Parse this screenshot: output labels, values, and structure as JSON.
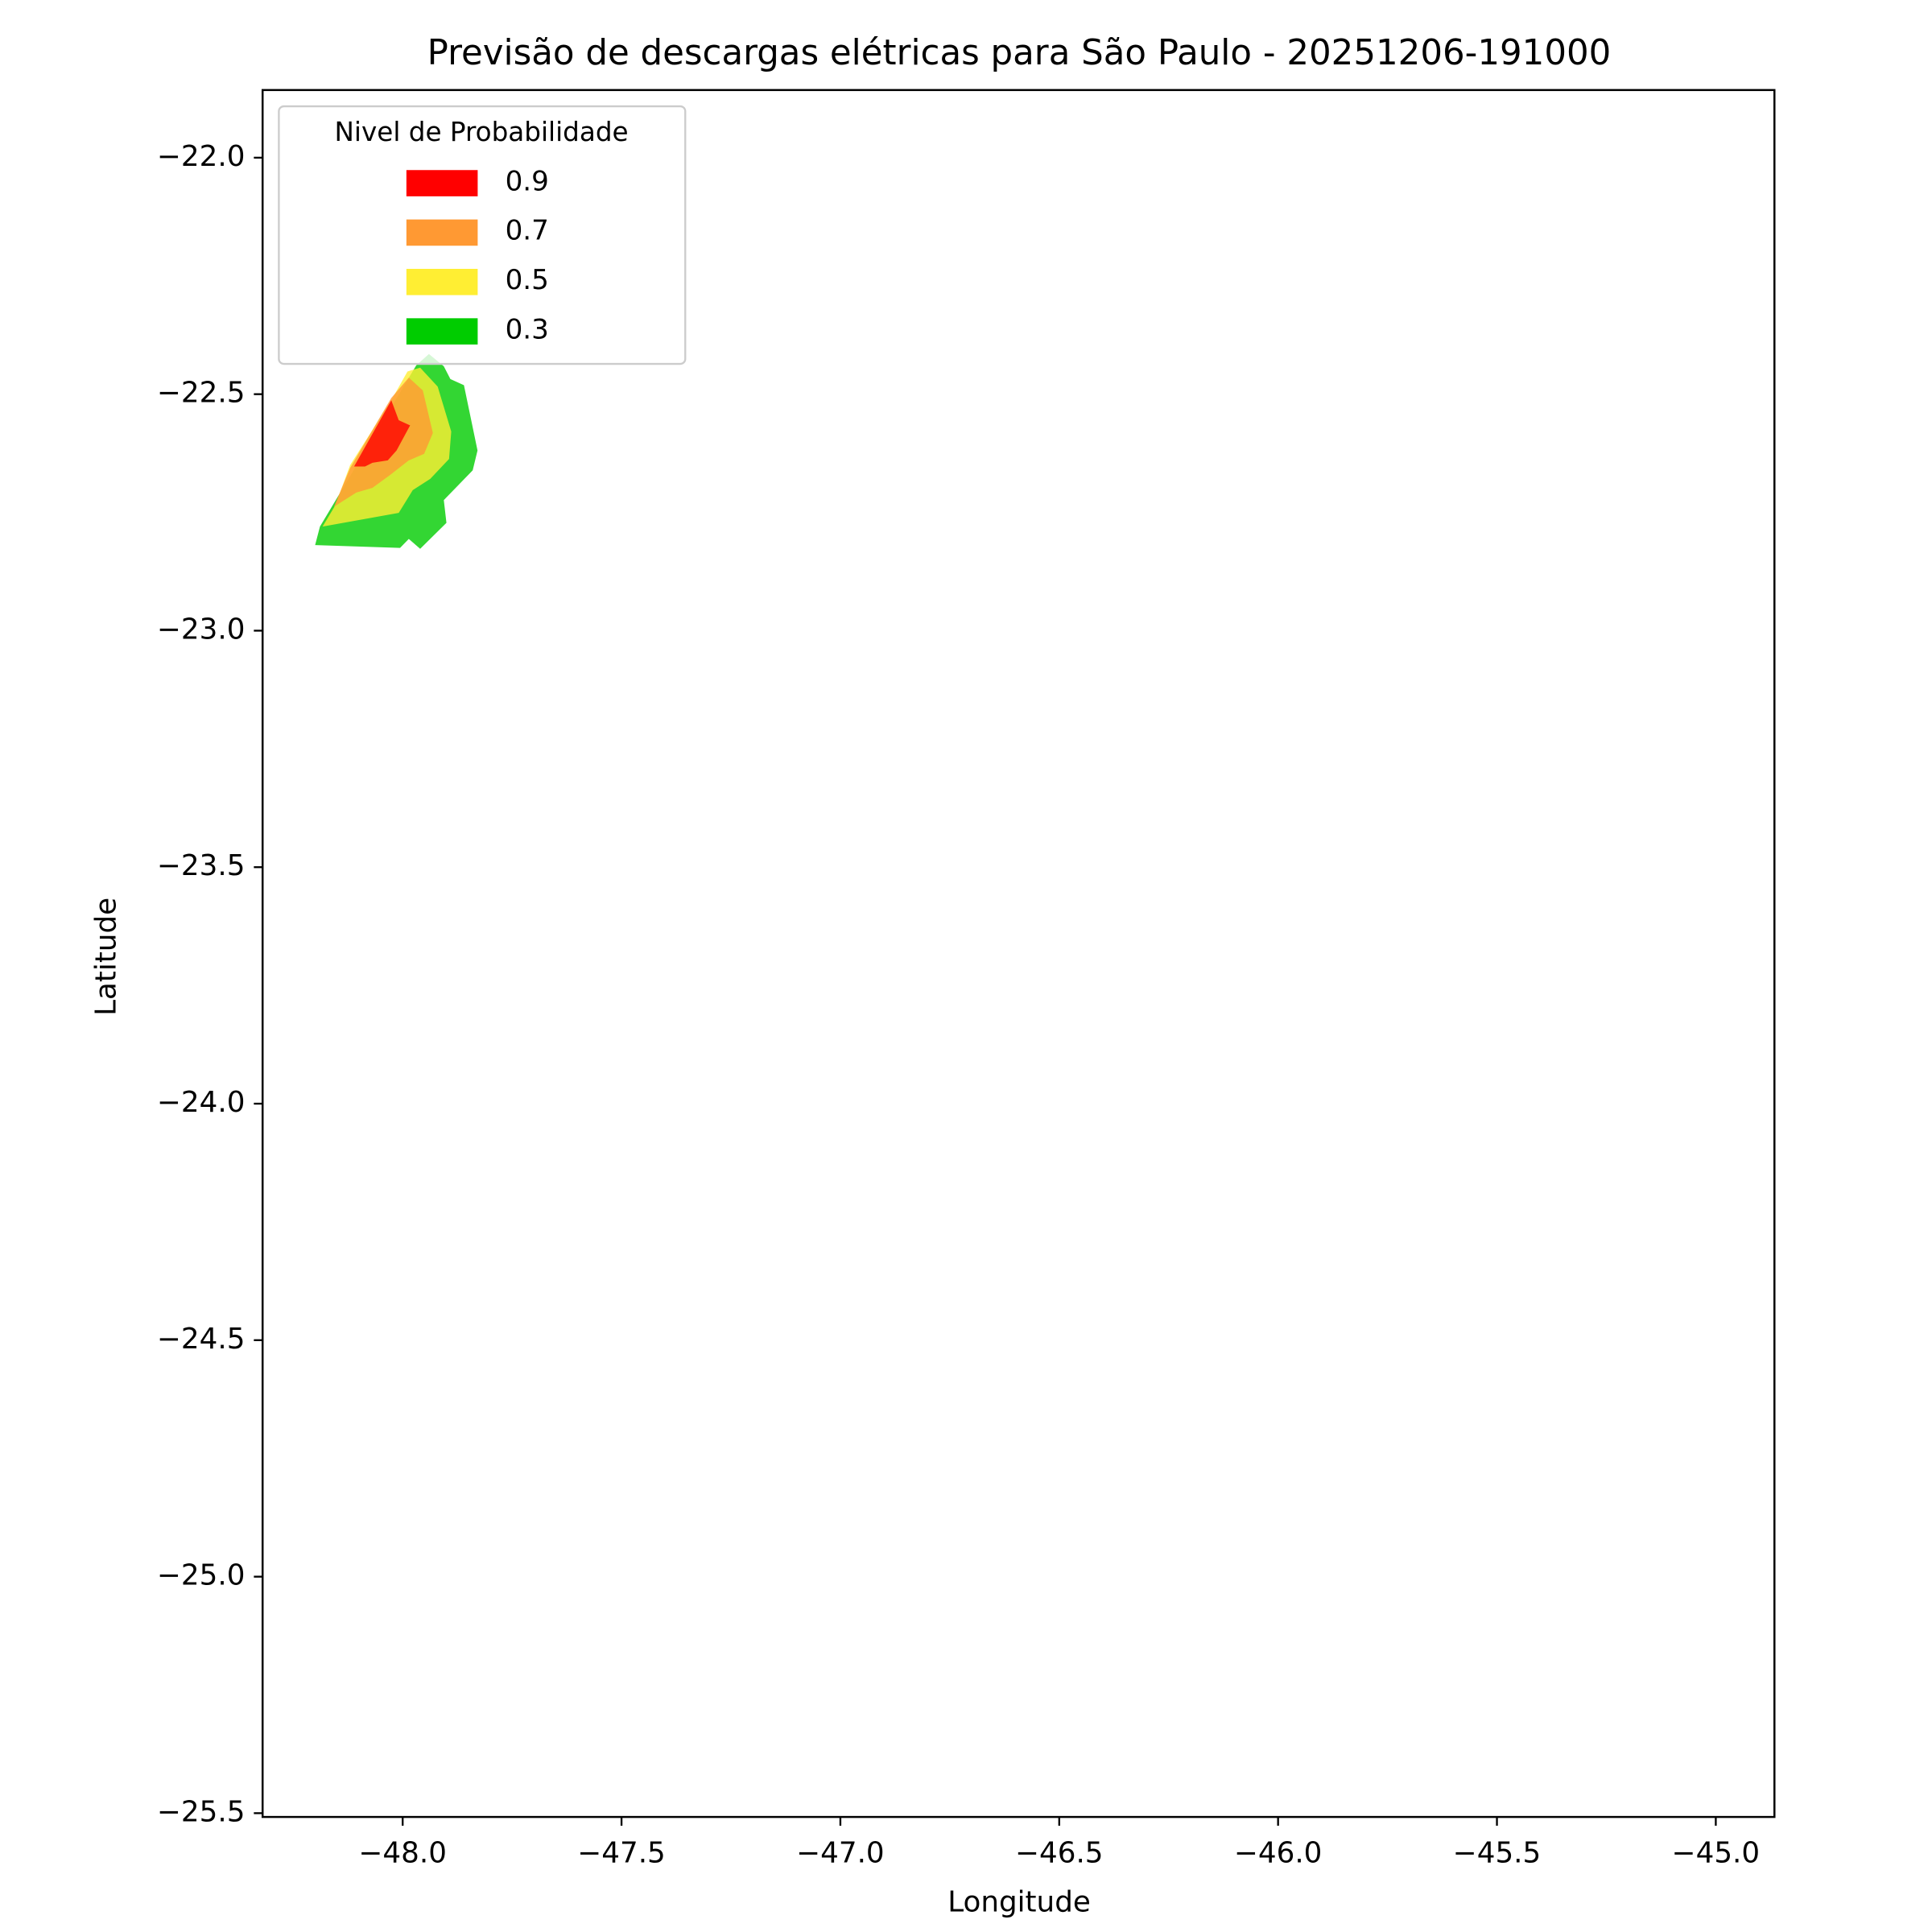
{
  "chart_data": {
    "type": "filled-contour",
    "title": "Previsão de descargas elétricas para São Paulo - 20251206-191000",
    "x_label": "Longitude",
    "y_label": "Latitude",
    "legend_title": "Nivel de Probabilidade",
    "legend_position": "upper left",
    "alpha": 0.8,
    "xlim": [
      -48.32,
      -44.866
    ],
    "ylim": [
      -25.508,
      -21.857
    ],
    "xticks": [
      {
        "value": -48.0,
        "label": "−48.0"
      },
      {
        "value": -47.5,
        "label": "−47.5"
      },
      {
        "value": -47.0,
        "label": "−47.0"
      },
      {
        "value": -46.5,
        "label": "−46.5"
      },
      {
        "value": -46.0,
        "label": "−46.0"
      },
      {
        "value": -45.5,
        "label": "−45.5"
      },
      {
        "value": -45.0,
        "label": "−45.0"
      }
    ],
    "yticks": [
      {
        "value": -22.0,
        "label": "−22.0"
      },
      {
        "value": -22.5,
        "label": "−22.5"
      },
      {
        "value": -23.0,
        "label": "−23.0"
      },
      {
        "value": -23.5,
        "label": "−23.5"
      },
      {
        "value": -24.0,
        "label": "−24.0"
      },
      {
        "value": -24.5,
        "label": "−24.5"
      },
      {
        "value": -25.0,
        "label": "−25.0"
      },
      {
        "value": -25.5,
        "label": "−25.5"
      }
    ],
    "series": [
      {
        "name": "0.9",
        "color": "#ff0000",
        "x": [
          -48.111,
          -48.026,
          -48.009,
          -47.983,
          -48.014,
          -48.034,
          -48.069,
          -48.086
        ],
        "y": [
          -22.653,
          -22.513,
          -22.555,
          -22.566,
          -22.619,
          -22.64,
          -22.645,
          -22.653
        ]
      },
      {
        "name": "0.7",
        "color": "#ff9933",
        "x": [
          -48.157,
          -48.12,
          -48.026,
          -47.986,
          -47.954,
          -47.931,
          -47.951,
          -47.986,
          -48.029,
          -48.069,
          -48.106
        ],
        "y": [
          -22.738,
          -22.656,
          -22.508,
          -22.465,
          -22.492,
          -22.582,
          -22.626,
          -22.64,
          -22.671,
          -22.698,
          -22.708
        ]
      },
      {
        "name": "0.5",
        "color": "#ffee33",
        "x": [
          -48.183,
          -48.154,
          -48.12,
          -48.026,
          -47.989,
          -47.96,
          -47.92,
          -47.889,
          -47.894,
          -47.937,
          -47.977,
          -48.009
        ],
        "y": [
          -22.78,
          -22.735,
          -22.65,
          -22.513,
          -22.452,
          -22.444,
          -22.484,
          -22.579,
          -22.637,
          -22.679,
          -22.703,
          -22.751
        ]
      },
      {
        "name": "0.3",
        "color": "#00cc00",
        "x": [
          -47.969,
          -47.94,
          -47.906,
          -47.891,
          -47.86,
          -47.829,
          -47.84,
          -47.906,
          -47.9,
          -47.96,
          -47.986,
          -48.006,
          -48.2,
          -48.189
        ],
        "y": [
          -22.439,
          -22.415,
          -22.441,
          -22.468,
          -22.481,
          -22.619,
          -22.661,
          -22.724,
          -22.772,
          -22.827,
          -22.806,
          -22.825,
          -22.819,
          -22.78
        ]
      }
    ]
  }
}
